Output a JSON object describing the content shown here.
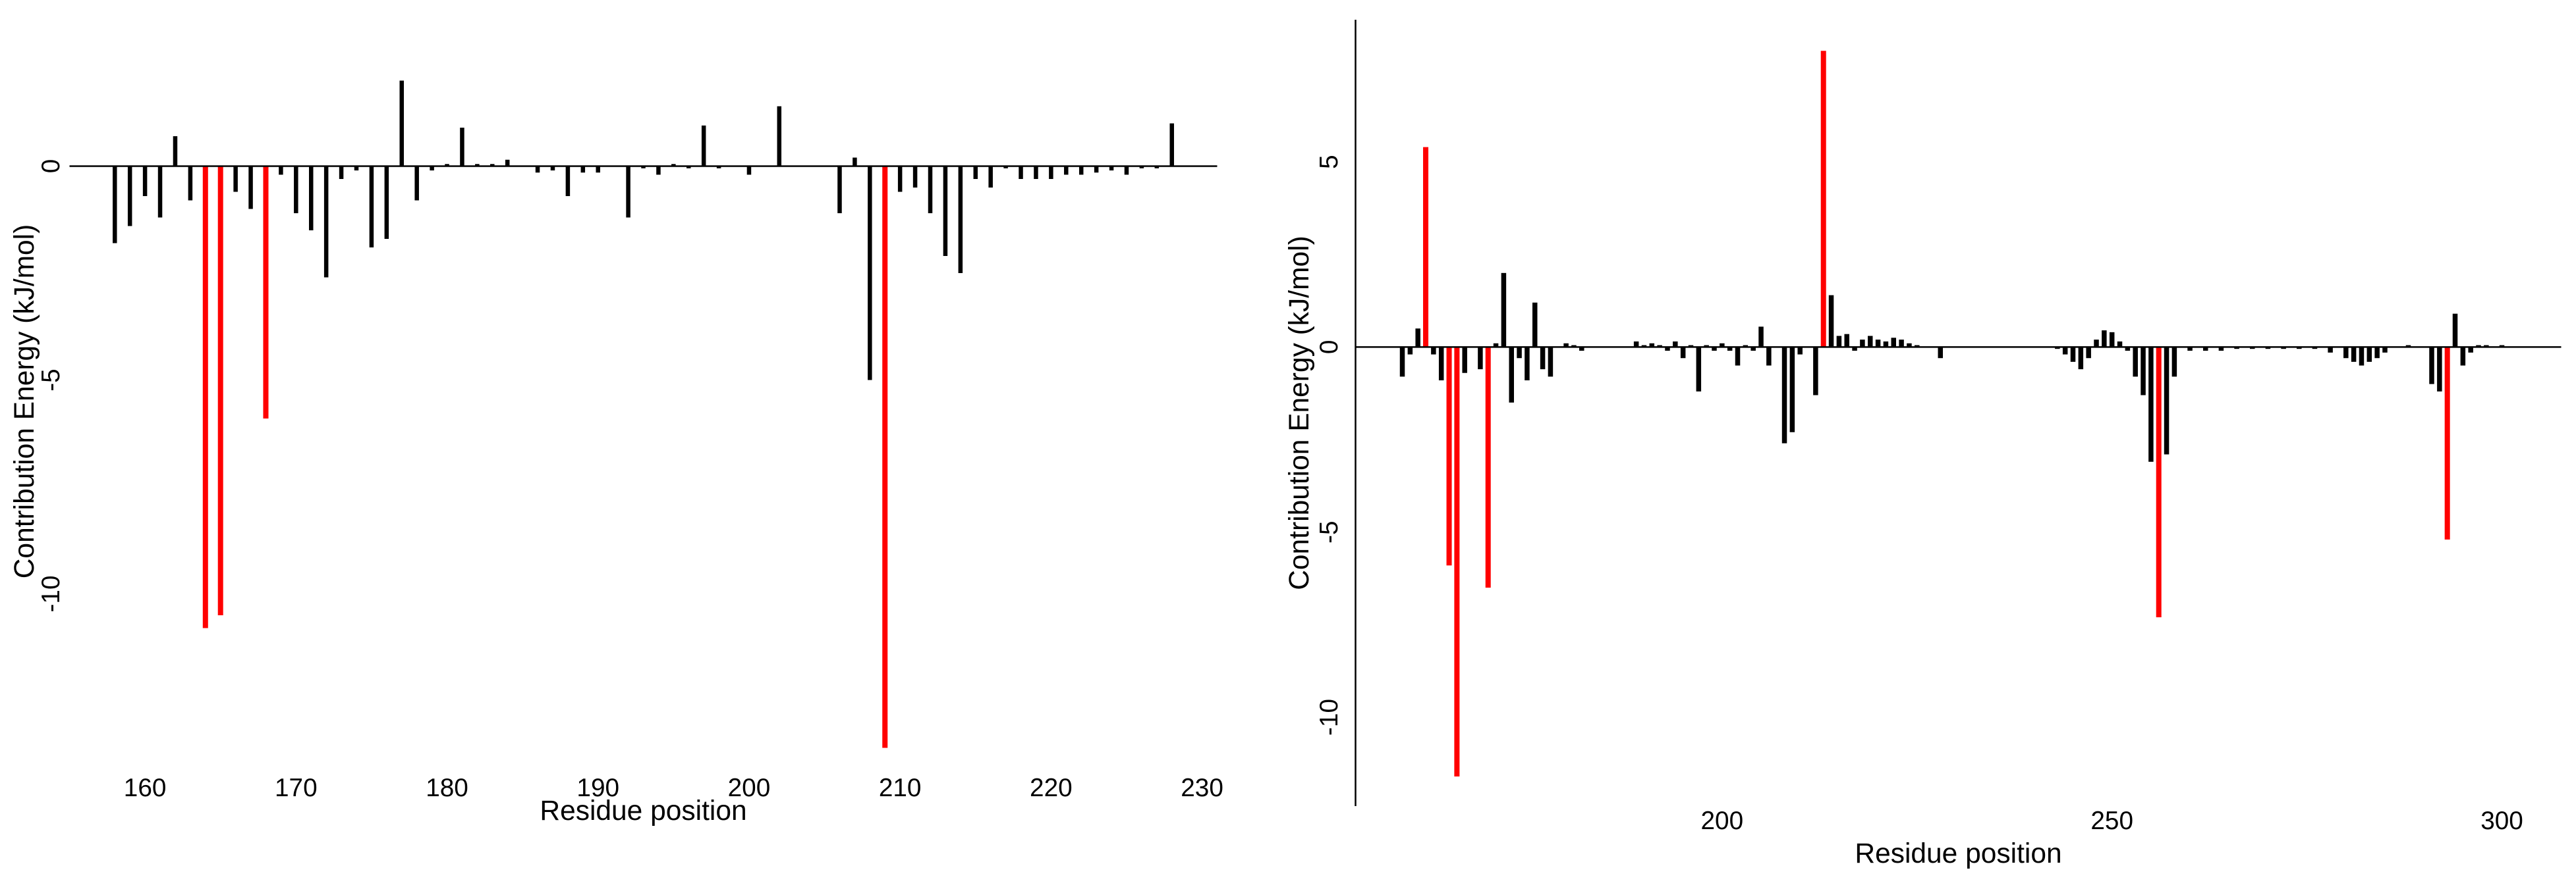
{
  "chart_data": [
    {
      "type": "bar",
      "xlabel": "Residue position",
      "ylabel": "Contribution Energy (kJ/mol)",
      "xlim": [
        155,
        231
      ],
      "ylim": [
        -14,
        3
      ],
      "xticks": [
        160,
        170,
        180,
        190,
        200,
        210,
        220,
        230
      ],
      "yticks": [
        -10,
        -5,
        0
      ],
      "series": [
        {
          "color": "#000000",
          "x": [
            158,
            159,
            160,
            161,
            162,
            163,
            166,
            167,
            169,
            170,
            171,
            172,
            173,
            174,
            175,
            176,
            177,
            178,
            179,
            180,
            181,
            182,
            183,
            184,
            186,
            187,
            188,
            189,
            190,
            192,
            193,
            194,
            195,
            196,
            197,
            198,
            200,
            202,
            206,
            207,
            208,
            210,
            211,
            212,
            213,
            214,
            215,
            216,
            217,
            218,
            219,
            220,
            221,
            222,
            223,
            224,
            225,
            226,
            227,
            228
          ],
          "values": [
            -1.8,
            -1.4,
            -0.7,
            -1.2,
            0.7,
            -0.8,
            -0.6,
            -1.0,
            -0.2,
            -1.1,
            -1.5,
            -2.6,
            -0.3,
            -0.1,
            -1.9,
            -1.7,
            2.0,
            -0.8,
            -0.1,
            0.05,
            0.9,
            0.05,
            0.05,
            0.15,
            -0.15,
            -0.1,
            -0.7,
            -0.15,
            -0.15,
            -1.2,
            -0.05,
            -0.2,
            0.05,
            -0.05,
            0.95,
            -0.05,
            -0.2,
            1.4,
            -1.1,
            0.2,
            -5.0,
            -0.6,
            -0.5,
            -1.1,
            -2.1,
            -2.5,
            -0.3,
            -0.5,
            -0.05,
            -0.3,
            -0.3,
            -0.3,
            -0.2,
            -0.2,
            -0.15,
            -0.1,
            -0.2,
            -0.05,
            -0.05,
            1.0
          ]
        },
        {
          "color": "#ff0000",
          "x": [
            164,
            165,
            168,
            209
          ],
          "values": [
            -10.8,
            -10.5,
            -5.9,
            -13.6
          ]
        }
      ]
    },
    {
      "type": "bar",
      "xlabel": "Residue position",
      "ylabel": "Contribution Energy (kJ/mol)",
      "xlim": [
        153,
        307.6
      ],
      "ylim": [
        -12.4,
        8.84
      ],
      "xticks": [
        200,
        250,
        300
      ],
      "yticks": [
        -10,
        -5,
        0,
        5
      ],
      "axis_line": true,
      "series": [
        {
          "color": "#000000",
          "x": [
            159,
            160,
            161,
            163,
            164,
            167,
            169,
            171,
            172,
            173,
            174,
            175,
            176,
            177,
            178,
            180,
            181,
            182,
            189,
            190,
            191,
            192,
            193,
            194,
            195,
            196,
            197,
            198,
            199,
            200,
            201,
            202,
            203,
            204,
            205,
            206,
            208,
            209,
            210,
            212,
            214,
            215,
            216,
            217,
            218,
            219,
            220,
            221,
            222,
            223,
            224,
            225,
            228,
            243,
            244,
            245,
            246,
            247,
            248,
            249,
            250,
            251,
            252,
            253,
            254,
            255,
            257,
            258,
            260,
            262,
            264,
            266,
            268,
            270,
            272,
            274,
            276,
            278,
            280,
            281,
            282,
            283,
            284,
            285,
            288,
            291,
            292,
            294,
            295,
            296,
            297,
            298,
            300
          ],
          "values": [
            -0.8,
            -0.2,
            0.5,
            -0.2,
            -0.9,
            -0.7,
            -0.6,
            0.1,
            2.0,
            -1.5,
            -0.3,
            -0.9,
            1.2,
            -0.6,
            -0.8,
            0.1,
            0.05,
            -0.1,
            0.15,
            0.05,
            0.1,
            0.05,
            -0.1,
            0.15,
            -0.3,
            0.05,
            -1.2,
            0.05,
            -0.1,
            0.1,
            -0.1,
            -0.5,
            0.05,
            -0.1,
            0.55,
            -0.5,
            -2.6,
            -2.3,
            -0.2,
            -1.3,
            1.4,
            0.3,
            0.35,
            -0.1,
            0.2,
            0.3,
            0.2,
            0.15,
            0.25,
            0.2,
            0.1,
            0.05,
            -0.3,
            -0.05,
            -0.2,
            -0.4,
            -0.6,
            -0.3,
            0.2,
            0.45,
            0.4,
            0.15,
            -0.1,
            -0.8,
            -1.3,
            -3.1,
            -2.9,
            -0.8,
            -0.1,
            -0.1,
            -0.1,
            -0.05,
            -0.05,
            -0.05,
            -0.05,
            -0.05,
            -0.05,
            -0.15,
            -0.3,
            -0.4,
            -0.5,
            -0.4,
            -0.3,
            -0.15,
            0.05,
            -1.0,
            -1.2,
            0.9,
            -0.5,
            -0.15,
            0.05,
            0.05,
            0.05
          ]
        },
        {
          "color": "#ff0000",
          "x": [
            162,
            165,
            166,
            170,
            213,
            256,
            293
          ],
          "values": [
            5.4,
            -5.9,
            -11.6,
            -6.5,
            8.0,
            -7.3,
            -5.2
          ]
        }
      ]
    }
  ]
}
